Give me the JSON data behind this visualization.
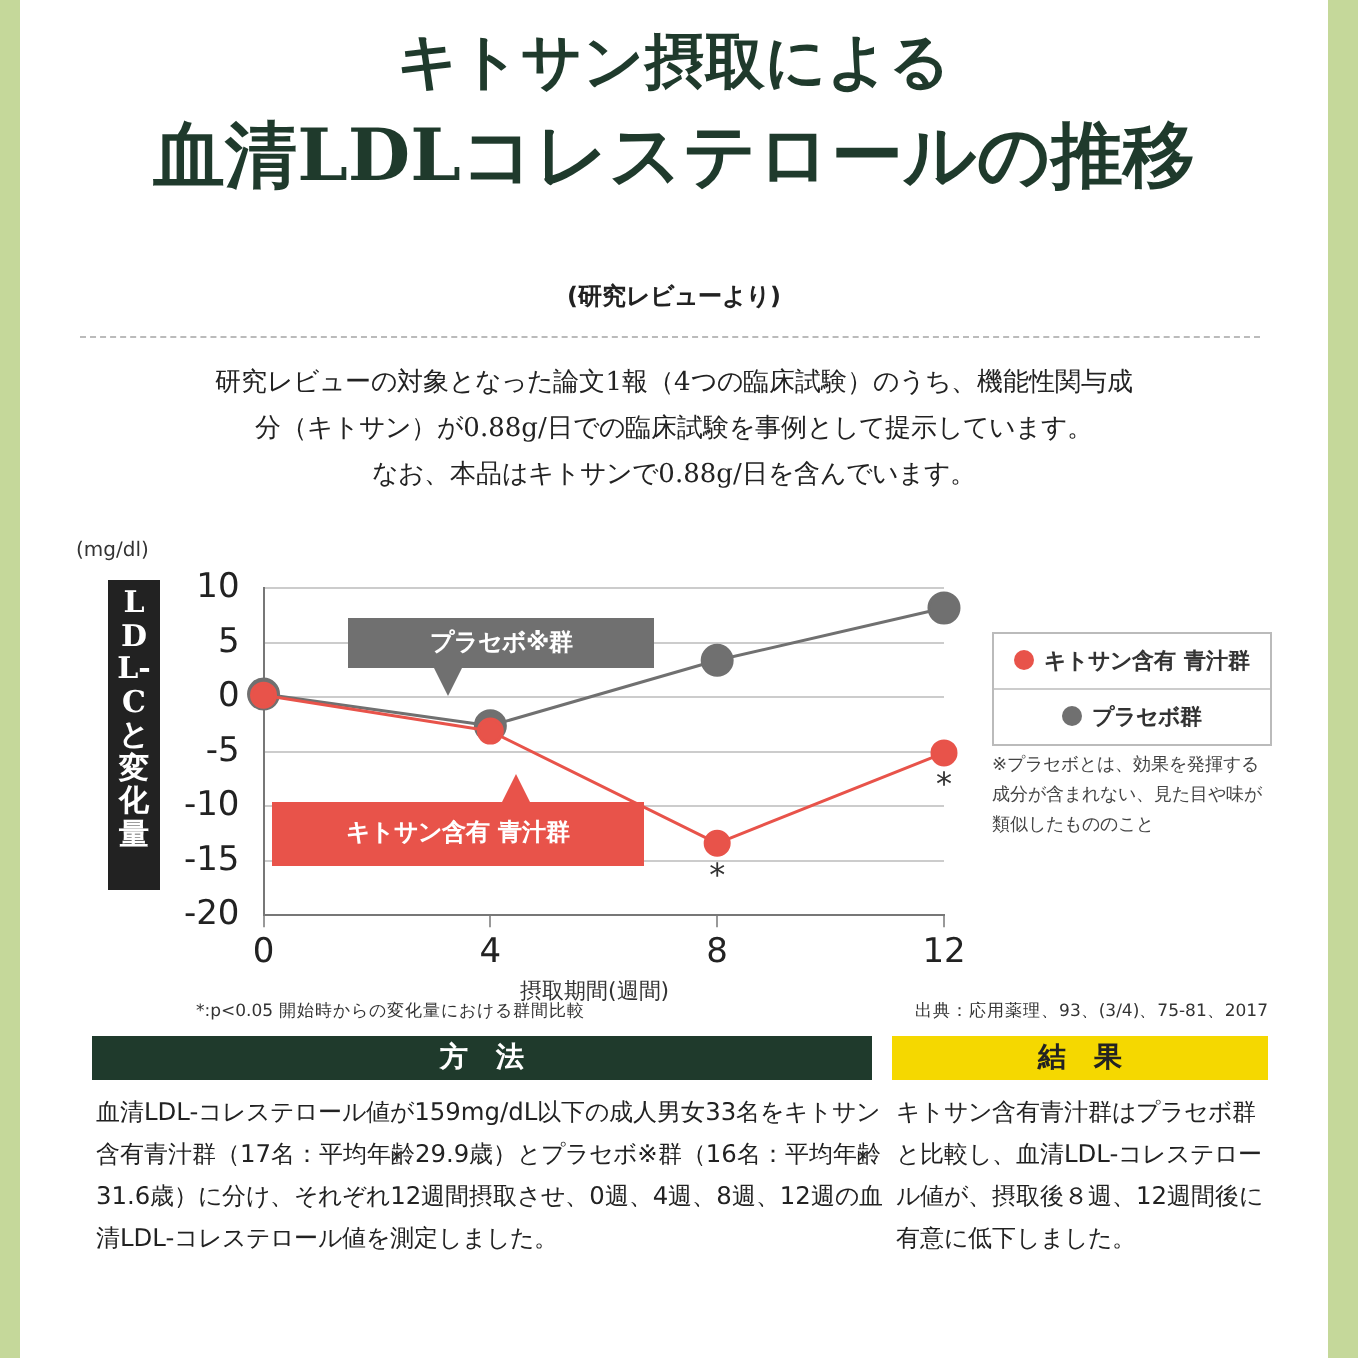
{
  "chart_data": {
    "type": "line",
    "title": "キトサン摂取による",
    "subtitle": "血清LDLコレステロールの推移",
    "xlabel": "摂取期間(週間)",
    "ylabel": "LDL-Cと変化量",
    "annotations": [
      "研究レビューの対象となった論文1報（4つの臨床試験）のうち、機能性関与成分（キトサン）が0.88g/日での臨床試験を事例として提示しています。",
      "なお、本品はキトサンで0.88g/日を含んでいます。",
      "(mg/dl)",
      "プラセボ※群",
      "キトサン含有 青汁群",
      {
        "text": "*",
        "x": 8,
        "y": -13.4
      },
      {
        "text": "*",
        "x": 12,
        "y": -5.1
      },
      "※プラセボとは、効果を発揮する成分が含まれない、見た目や味が類似したもののこと",
      "*:p<0.05 開始時からの変化量における群間比較",
      "出典：応用薬理、93、(3/4)、75-81、2017",
      "方　法",
      "血清LDL-コレステロール値が159mg/dL以下の成人男女33名をキトサン含有青汁群（17名：平均年齢29.9歳）とプラセボ※群（16名：平均年齢31.6歳）に分け、それぞれ12週間摂取させ、0週、4週、8週、12週の血清LDL-コレステロール値を測定しました。",
      "結　果",
      "キトサン含有青汁群はプラセボ群と比較し、血清LDL-コレステロール値が、摂取後８週、12週間後に有意に低下しました。",
      "(研究レビューより)"
    ],
    "x": [
      0,
      4,
      8,
      12
    ],
    "series": [
      {
        "name": "キトサン含有 青汁群",
        "color": "#e8534a",
        "values": [
          0.2,
          -3.1,
          -13.4,
          -5.1
        ]
      },
      {
        "name": "プラセボ群",
        "color": "#707070",
        "values": [
          0.3,
          -2.6,
          3.4,
          8.2
        ]
      }
    ],
    "xlim": [
      0,
      12
    ],
    "xticks": [
      0,
      4,
      8,
      12
    ],
    "ylim": [
      -20,
      10
    ],
    "yticks": [
      -20,
      -15,
      -10,
      -5,
      0,
      5,
      10
    ],
    "grid": "y",
    "legend": "right",
    "marker": "circle",
    "line_style": "solid"
  }
}
